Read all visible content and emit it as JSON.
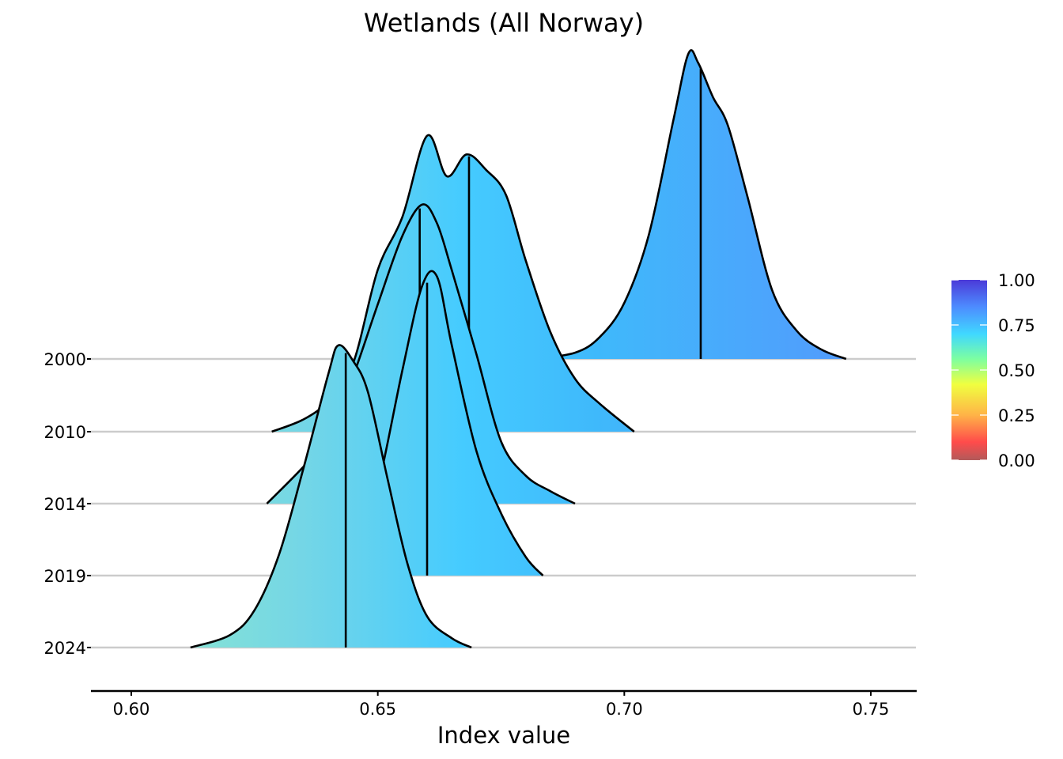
{
  "chart_data": {
    "type": "ridgeline",
    "title": "Wetlands (All Norway)",
    "xlabel": "Index value",
    "ylabel": "",
    "xlim": [
      0.592,
      0.759
    ],
    "x_ticks": [
      "0.60",
      "0.65",
      "0.70",
      "0.75"
    ],
    "x_tick_values": [
      0.6,
      0.65,
      0.7,
      0.75
    ],
    "grid": false,
    "legend": {
      "type": "colorbar",
      "placement": "right",
      "ticks": [
        "1.00",
        "0.75",
        "0.50",
        "0.25",
        "0.00"
      ],
      "tick_values": [
        1.0,
        0.75,
        0.5,
        0.25,
        0.0
      ],
      "colormap": [
        "#b25a5a",
        "#ff4b4b",
        "#ffb347",
        "#f0ff40",
        "#7dffa0",
        "#40d8ff",
        "#4d8cff",
        "#4b3ad8"
      ]
    },
    "series": [
      {
        "name": "2000",
        "median": 0.7155,
        "density": [
          [
            0.682,
            0.0
          ],
          [
            0.69,
            0.02
          ],
          [
            0.695,
            0.07
          ],
          [
            0.7,
            0.18
          ],
          [
            0.705,
            0.4
          ],
          [
            0.71,
            0.77
          ],
          [
            0.713,
            0.98
          ],
          [
            0.715,
            0.95
          ],
          [
            0.718,
            0.84
          ],
          [
            0.721,
            0.75
          ],
          [
            0.725,
            0.52
          ],
          [
            0.73,
            0.22
          ],
          [
            0.735,
            0.09
          ],
          [
            0.74,
            0.03
          ],
          [
            0.745,
            0.0
          ]
        ]
      },
      {
        "name": "2010",
        "median": 0.6685,
        "density": [
          [
            0.6285,
            0.0
          ],
          [
            0.635,
            0.04
          ],
          [
            0.64,
            0.1
          ],
          [
            0.645,
            0.22
          ],
          [
            0.65,
            0.52
          ],
          [
            0.655,
            0.69
          ],
          [
            0.66,
            0.95
          ],
          [
            0.664,
            0.82
          ],
          [
            0.668,
            0.89
          ],
          [
            0.672,
            0.84
          ],
          [
            0.676,
            0.76
          ],
          [
            0.68,
            0.55
          ],
          [
            0.685,
            0.32
          ],
          [
            0.69,
            0.17
          ],
          [
            0.695,
            0.09
          ],
          [
            0.702,
            0.0
          ]
        ]
      },
      {
        "name": "2014",
        "median": 0.6585,
        "density": [
          [
            0.6275,
            0.0
          ],
          [
            0.635,
            0.12
          ],
          [
            0.64,
            0.22
          ],
          [
            0.645,
            0.41
          ],
          [
            0.65,
            0.64
          ],
          [
            0.655,
            0.86
          ],
          [
            0.659,
            0.96
          ],
          [
            0.662,
            0.9
          ],
          [
            0.665,
            0.75
          ],
          [
            0.67,
            0.48
          ],
          [
            0.675,
            0.2
          ],
          [
            0.68,
            0.09
          ],
          [
            0.685,
            0.04
          ],
          [
            0.69,
            0.0
          ]
        ]
      },
      {
        "name": "2019",
        "median": 0.66,
        "density": [
          [
            0.645,
            0.0
          ],
          [
            0.65,
            0.28
          ],
          [
            0.655,
            0.66
          ],
          [
            0.659,
            0.93
          ],
          [
            0.662,
            0.96
          ],
          [
            0.665,
            0.74
          ],
          [
            0.67,
            0.4
          ],
          [
            0.675,
            0.2
          ],
          [
            0.68,
            0.06
          ],
          [
            0.6835,
            0.0
          ]
        ]
      },
      {
        "name": "2024",
        "median": 0.6435,
        "density": [
          [
            0.612,
            0.0
          ],
          [
            0.62,
            0.04
          ],
          [
            0.625,
            0.12
          ],
          [
            0.63,
            0.3
          ],
          [
            0.635,
            0.58
          ],
          [
            0.64,
            0.88
          ],
          [
            0.642,
            0.97
          ],
          [
            0.645,
            0.92
          ],
          [
            0.648,
            0.82
          ],
          [
            0.652,
            0.54
          ],
          [
            0.656,
            0.27
          ],
          [
            0.66,
            0.1
          ],
          [
            0.665,
            0.03
          ],
          [
            0.669,
            0.0
          ]
        ]
      }
    ]
  }
}
